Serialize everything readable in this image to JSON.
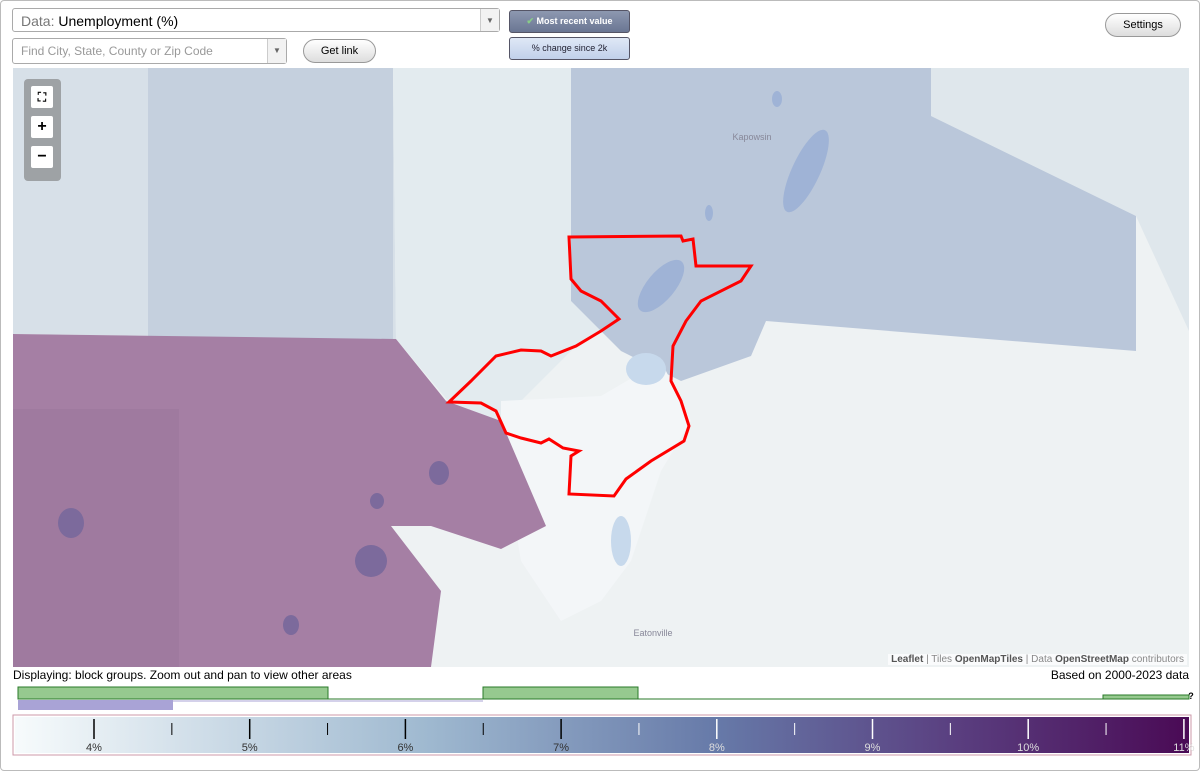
{
  "controls": {
    "data_label": "Data:",
    "data_value": "Unemployment (%)",
    "search_placeholder": "Find City, State, County or Zip Code",
    "get_link": "Get link",
    "most_recent": "Most recent value",
    "pct_change": "% change since 2k",
    "settings": "Settings"
  },
  "map": {
    "zoom_in": "+",
    "zoom_out": "−",
    "places": [
      "Kapowsin",
      "Eatonville"
    ],
    "attribution": [
      "Leaflet",
      "| Tiles",
      "OpenMapTiles",
      "| Data",
      "OpenStreetMap",
      "contributors"
    ]
  },
  "status": {
    "displaying": "Displaying: block groups. Zoom out and pan to view other areas",
    "based_on": "Based on 2000-2023 data"
  },
  "legend": {
    "question": "?",
    "labels": [
      "4%",
      "5%",
      "6%",
      "7%",
      "8%",
      "9%",
      "10%",
      "11%"
    ]
  }
}
